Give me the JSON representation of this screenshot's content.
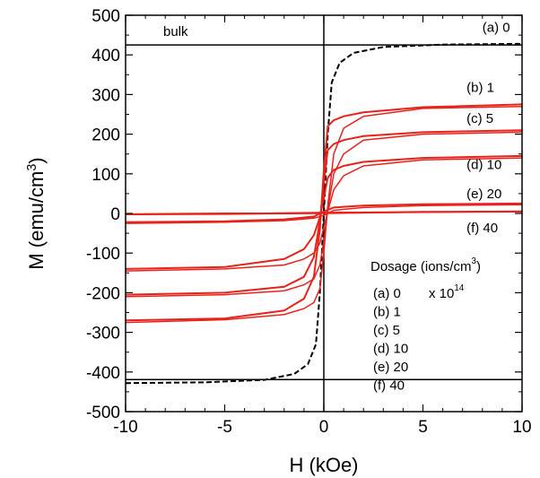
{
  "chart_data": {
    "type": "line",
    "xlabel": "H  (kOe)",
    "ylabel": "M  (emu/cm",
    "ylabel_sup": "3",
    "ylabel_close": ")",
    "xlim": [
      -10,
      10
    ],
    "ylim": [
      -500,
      500
    ],
    "x_ticks": [
      -10,
      -5,
      0,
      5,
      10
    ],
    "x_tick_labels": [
      "-10",
      "-5",
      "0",
      "5",
      "10"
    ],
    "y_ticks": [
      -500,
      -400,
      -300,
      -200,
      -100,
      0,
      100,
      200,
      300,
      400,
      500
    ],
    "y_tick_labels": [
      "-500",
      "-400",
      "-300",
      "-200",
      "-100",
      "0",
      "100",
      "200",
      "300",
      "400",
      "500"
    ],
    "grid": false,
    "bulk_label": "bulk",
    "bulk_level": 425,
    "bulk_curve": {
      "color": "#000000",
      "style": "dashed",
      "x": [
        -10,
        -6,
        -3,
        -1.5,
        -0.8,
        -0.4,
        -0.2,
        0,
        0.2,
        0.4,
        0.8,
        1.5,
        3,
        6,
        10
      ],
      "y": [
        -428,
        -426,
        -420,
        -405,
        -380,
        -330,
        -200,
        0,
        200,
        330,
        380,
        405,
        420,
        426,
        428
      ]
    },
    "series": [
      {
        "label": "(b) 1",
        "color": "#e8221a",
        "ms": 275,
        "upper_x": [
          -10,
          -5,
          -2,
          -1,
          -0.5,
          -0.2,
          0,
          0.2,
          0.5,
          1,
          2,
          5,
          10
        ],
        "upper_y": [
          -270,
          -265,
          -245,
          -215,
          -160,
          -40,
          110,
          220,
          235,
          245,
          255,
          268,
          275
        ],
        "lower_x": [
          -10,
          -5,
          -2,
          -1,
          -0.5,
          -0.2,
          0,
          0.2,
          0.5,
          1,
          2,
          5,
          10
        ],
        "lower_y": [
          -275,
          -268,
          -255,
          -240,
          -225,
          -190,
          -100,
          20,
          150,
          215,
          245,
          265,
          270
        ]
      },
      {
        "label": "(c) 5",
        "color": "#e8221a",
        "ms": 210,
        "upper_x": [
          -10,
          -5,
          -2,
          -1,
          -0.5,
          -0.2,
          0,
          0.2,
          0.5,
          1,
          2,
          5,
          10
        ],
        "upper_y": [
          -205,
          -200,
          -185,
          -160,
          -110,
          -20,
          80,
          160,
          175,
          185,
          195,
          205,
          210
        ],
        "lower_x": [
          -10,
          -5,
          -2,
          -1,
          -0.5,
          -0.2,
          0,
          0.2,
          0.5,
          1,
          2,
          5,
          10
        ],
        "lower_y": [
          -210,
          -205,
          -195,
          -180,
          -165,
          -130,
          -70,
          10,
          100,
          150,
          185,
          200,
          205
        ]
      },
      {
        "label": "(d) 10",
        "color": "#e8221a",
        "ms": 145,
        "upper_x": [
          -10,
          -5,
          -2,
          -1,
          -0.5,
          -0.2,
          0,
          0.2,
          0.5,
          1,
          2,
          5,
          10
        ],
        "upper_y": [
          -140,
          -135,
          -115,
          -90,
          -55,
          -10,
          40,
          90,
          110,
          120,
          130,
          140,
          145
        ],
        "lower_x": [
          -10,
          -5,
          -2,
          -1,
          -0.5,
          -0.2,
          0,
          0.2,
          0.5,
          1,
          2,
          5,
          10
        ],
        "lower_y": [
          -145,
          -140,
          -130,
          -115,
          -100,
          -75,
          -35,
          5,
          60,
          95,
          120,
          135,
          140
        ]
      },
      {
        "label": "(e) 20",
        "color": "#e8221a",
        "ms": 25,
        "upper_x": [
          -10,
          -5,
          -2,
          -0.5,
          0,
          0.5,
          2,
          5,
          10
        ],
        "upper_y": [
          -22,
          -20,
          -15,
          -8,
          5,
          15,
          20,
          23,
          25
        ],
        "lower_x": [
          -10,
          -5,
          -2,
          -0.5,
          0,
          0.5,
          2,
          5,
          10
        ],
        "lower_y": [
          -25,
          -22,
          -18,
          -12,
          -5,
          8,
          15,
          20,
          22
        ]
      },
      {
        "label": "(f) 40",
        "color": "#e8221a",
        "ms": 5,
        "upper_x": [
          -10,
          -5,
          -3,
          0,
          3,
          5,
          10
        ],
        "upper_y": [
          -2,
          0,
          0,
          2,
          3,
          4,
          5
        ],
        "lower_x": [
          -10,
          -5,
          -3,
          0,
          3,
          5,
          10
        ],
        "lower_y": [
          -3,
          -2,
          -1,
          0,
          2,
          3,
          4
        ]
      }
    ],
    "annotations": [
      {
        "text": "(a) 0",
        "x": 8.0,
        "y": 458
      },
      {
        "text": "(b) 1",
        "x": 7.2,
        "y": 306
      },
      {
        "text": "(c) 5",
        "x": 7.2,
        "y": 228
      },
      {
        "text": "(d) 10",
        "x": 7.2,
        "y": 112
      },
      {
        "text": "(e) 20",
        "x": 7.2,
        "y": 38
      },
      {
        "text": "(f) 40",
        "x": 7.2,
        "y": -48
      }
    ],
    "legend": {
      "title": "Dosage (ions/cm",
      "title_sup": "3",
      "title_close": ")",
      "rows": [
        "(a)  0",
        "(b)  1",
        "(c)  5",
        "(d)  10",
        "(e)  20",
        "(f)  40"
      ],
      "multiplier": "x 10",
      "multiplier_sup": "14"
    }
  }
}
